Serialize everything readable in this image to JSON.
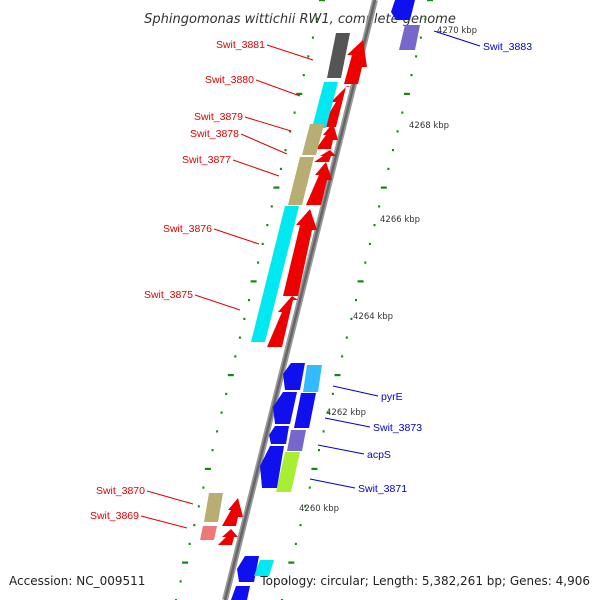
{
  "title": "Sphingomonas wittichii RW1, complete genome",
  "footer": {
    "accession": "Accession: NC_009511",
    "summary": "Topology: circular; Length: 5,382,261 bp; Genes: 4,906"
  },
  "colors": {
    "forward_label": "#e00000",
    "reverse_label": "#0000cc",
    "tick": "#118811",
    "backbone": "#777777",
    "red": "#ee0000",
    "cyan": "#00e8f0",
    "khaki": "#b8ad73",
    "dark_gray": "#555555",
    "blue": "#1010ee",
    "light_blue": "#33bbff",
    "purple": "#7766cc",
    "lime": "#a8ee33",
    "pink": "#ee7777"
  },
  "ticks": [
    "4270 kbp",
    "4268 kbp",
    "4266 kbp",
    "4264 kbp",
    "4262 kbp",
    "4260 kbp"
  ],
  "forward_labels": [
    "Swit_3881",
    "Swit_3880",
    "Swit_3879",
    "Swit_3878",
    "Swit_3877",
    "Swit_3876",
    "Swit_3875",
    "Swit_3870",
    "Swit_3869"
  ],
  "reverse_labels": [
    "Swit_3883",
    "pyrE",
    "Swit_3873",
    "acpS",
    "Swit_3871"
  ]
}
